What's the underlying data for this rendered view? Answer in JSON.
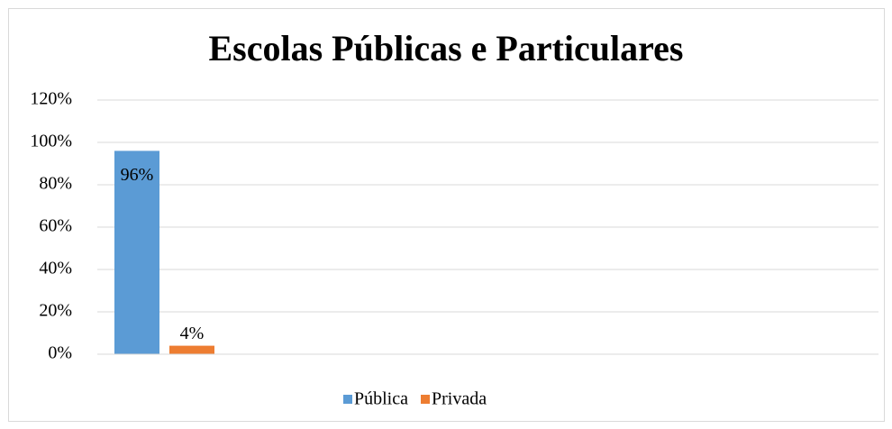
{
  "chart_data": {
    "type": "bar",
    "title": "Escolas Públicas e Particulares",
    "categories": [
      null
    ],
    "series": [
      {
        "name": "Pública",
        "color": "#5b9bd5",
        "values": [
          96
        ],
        "value_labels": [
          "96%"
        ]
      },
      {
        "name": "Privada",
        "color": "#ed7d31",
        "values": [
          4
        ],
        "value_labels": [
          "4%"
        ]
      }
    ],
    "ylim": [
      0,
      120
    ],
    "yticks": [
      {
        "value": 0,
        "label": "0%"
      },
      {
        "value": 20,
        "label": "20%"
      },
      {
        "value": 40,
        "label": "40%"
      },
      {
        "value": 60,
        "label": "60%"
      },
      {
        "value": 80,
        "label": "80%"
      },
      {
        "value": 100,
        "label": "100%"
      },
      {
        "value": 120,
        "label": "120%"
      }
    ],
    "grid": true,
    "legend": "bottom"
  }
}
